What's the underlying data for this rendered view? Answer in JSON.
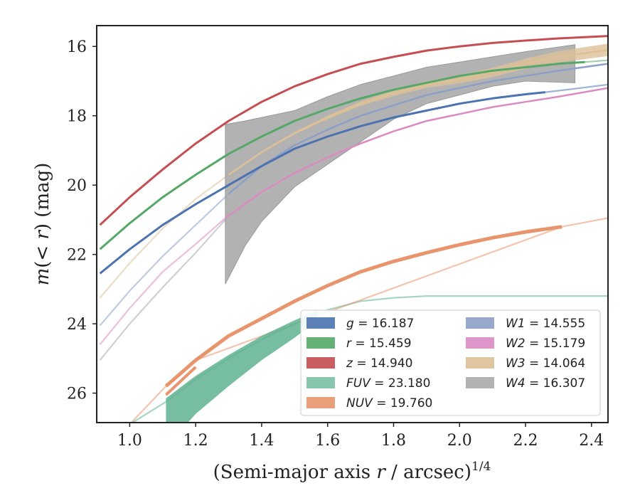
{
  "chart_data": {
    "type": "line",
    "title": "",
    "xlabel": "(Semi-major axis r / arcsec)^{1/4}",
    "xlabel_parts": {
      "main": "(Semi-major axis ",
      "var": "r",
      "rest": " / arcsec)",
      "sup": "1/4"
    },
    "ylabel": "m(< r) (mag)",
    "ylabel_parts": {
      "m": "m",
      "open": "(",
      "lt": "< ",
      "r": "r",
      "close": ")",
      "unit": " (mag)"
    },
    "xlim": [
      0.9,
      2.45
    ],
    "ylim": [
      26.85,
      15.4
    ],
    "y_inverted": true,
    "xticks": [
      1.0,
      1.2,
      1.4,
      1.6,
      1.8,
      2.0,
      2.2,
      2.4
    ],
    "xtick_labels": [
      "1.0",
      "1.2",
      "1.4",
      "1.6",
      "1.8",
      "2.0",
      "2.2",
      "2.4"
    ],
    "yticks": [
      16,
      18,
      20,
      22,
      24,
      26
    ],
    "ytick_labels": [
      "16",
      "18",
      "20",
      "22",
      "24",
      "26"
    ],
    "grid": false,
    "legend_position": "lower-right",
    "series": [
      {
        "name": "g",
        "label_var": "g",
        "label_value": "= 16.187",
        "color": "#4c72b0",
        "opacity": 1,
        "x": [
          0.91,
          1.0,
          1.1,
          1.2,
          1.3,
          1.4,
          1.5,
          1.6,
          1.7,
          1.8,
          1.9,
          2.0,
          2.1,
          2.2,
          2.26
        ],
        "y": [
          22.55,
          21.85,
          21.15,
          20.55,
          20.0,
          19.45,
          18.95,
          18.6,
          18.3,
          18.05,
          17.85,
          17.65,
          17.5,
          17.38,
          17.32
        ],
        "x_faint": [
          2.26,
          2.35,
          2.45
        ],
        "y_faint": [
          17.32,
          17.22,
          17.1
        ],
        "width": 3,
        "band": 0
      },
      {
        "name": "r",
        "label_var": "r",
        "label_value": "= 15.459",
        "color": "#55a868",
        "opacity": 1,
        "x": [
          0.91,
          1.0,
          1.1,
          1.2,
          1.3,
          1.4,
          1.5,
          1.6,
          1.7,
          1.8,
          1.9,
          2.0,
          2.1,
          2.2,
          2.3,
          2.38
        ],
        "y": [
          21.85,
          21.1,
          20.35,
          19.7,
          19.1,
          18.6,
          18.15,
          17.8,
          17.5,
          17.25,
          17.05,
          16.85,
          16.7,
          16.6,
          16.5,
          16.45
        ],
        "x_faint": [
          2.38,
          2.45
        ],
        "y_faint": [
          16.45,
          16.4
        ],
        "width": 3,
        "band": 0
      },
      {
        "name": "z",
        "label_var": "z",
        "label_value": "= 14.940",
        "color": "#c44e52",
        "opacity": 1,
        "x": [
          0.91,
          1.0,
          1.1,
          1.2,
          1.3,
          1.4,
          1.5,
          1.6,
          1.7,
          1.8,
          1.9,
          2.0,
          2.1,
          2.2,
          2.3,
          2.45
        ],
        "y": [
          21.15,
          20.35,
          19.55,
          18.8,
          18.15,
          17.6,
          17.15,
          16.8,
          16.5,
          16.3,
          16.12,
          16.0,
          15.9,
          15.83,
          15.77,
          15.7
        ],
        "x_faint": [],
        "y_faint": [],
        "width": 3,
        "band": 0
      },
      {
        "name": "FUV",
        "label_var": "FUV",
        "label_value": "= 23.180",
        "color": "#5fb292",
        "opacity": 0.85,
        "x": [
          1.11,
          1.2,
          1.3,
          1.4,
          1.5,
          1.57
        ],
        "y": [
          26.25,
          25.6,
          25.0,
          24.45,
          24.0,
          23.7
        ],
        "x_faint": [
          0.96,
          1.0,
          1.11,
          1.2,
          1.3,
          1.4,
          1.5,
          1.6,
          1.7,
          1.8,
          1.9,
          2.0,
          2.2,
          2.45
        ],
        "y_faint": [
          27.0,
          26.9,
          26.25,
          25.6,
          25.0,
          24.45,
          24.0,
          23.6,
          23.35,
          23.25,
          23.2,
          23.2,
          23.2,
          23.2
        ],
        "width": 2,
        "band": 1
      },
      {
        "name": "NUV",
        "label_var": "NUV",
        "label_value": "= 19.760",
        "color": "#e8956d",
        "opacity": 1,
        "x": [
          1.11,
          1.2,
          1.3,
          1.4,
          1.5,
          1.6,
          1.7,
          1.8,
          1.9,
          2.0,
          2.1,
          2.2,
          2.31
        ],
        "y": [
          25.8,
          25.05,
          24.35,
          23.85,
          23.35,
          22.9,
          22.5,
          22.2,
          21.95,
          21.72,
          21.52,
          21.35,
          21.2
        ],
        "x_faint": [
          0.99,
          1.11,
          1.2,
          2.31,
          2.45
        ],
        "y_faint": [
          27.0,
          25.8,
          25.05,
          21.2,
          20.95
        ],
        "width": 5,
        "band": 0
      },
      {
        "name": "W1",
        "label_var": "W1",
        "label_value": "= 14.555",
        "color": "#8c9fc7",
        "opacity": 1,
        "x": [
          1.3,
          1.4,
          1.5,
          1.6,
          1.7,
          1.8,
          1.9,
          2.0,
          2.1,
          2.2,
          2.3,
          2.45
        ],
        "y": [
          20.25,
          19.45,
          18.85,
          18.4,
          18.0,
          17.7,
          17.4,
          17.2,
          17.0,
          16.85,
          16.7,
          16.5
        ],
        "x_faint": [
          0.91,
          1.0,
          1.1,
          1.2,
          1.3
        ],
        "y_faint": [
          24.05,
          23.05,
          22.05,
          21.15,
          20.25
        ],
        "width": 2.5,
        "band": 0
      },
      {
        "name": "W2",
        "label_var": "W2",
        "label_value": "= 15.179",
        "color": "#da8bc3",
        "opacity": 1,
        "x": [
          1.29,
          1.4,
          1.5,
          1.6,
          1.7,
          1.8,
          1.9,
          2.0,
          2.1,
          2.2,
          2.3,
          2.45
        ],
        "y": [
          20.95,
          20.2,
          19.65,
          19.2,
          18.8,
          18.45,
          18.15,
          17.95,
          17.75,
          17.6,
          17.45,
          17.2
        ],
        "x_faint": [
          0.91,
          1.0,
          1.1,
          1.2,
          1.29
        ],
        "y_faint": [
          24.6,
          23.55,
          22.5,
          21.7,
          20.95
        ],
        "width": 2.5,
        "band": 0
      },
      {
        "name": "W3",
        "label_var": "W3",
        "label_value": "= 14.064",
        "color": "#dcc097",
        "opacity": 1,
        "x": [
          1.3,
          1.4,
          1.5,
          1.6,
          1.7,
          1.8,
          1.9,
          2.0,
          2.1,
          2.2,
          2.3,
          2.45
        ],
        "y": [
          19.7,
          19.05,
          18.5,
          18.05,
          17.65,
          17.35,
          17.1,
          16.95,
          16.75,
          16.5,
          16.3,
          16.1
        ],
        "x_faint": [
          0.91,
          1.0,
          1.1,
          1.2,
          1.3
        ],
        "y_faint": [
          23.25,
          22.25,
          21.25,
          20.4,
          19.7
        ],
        "width": 2.5,
        "band": 0.18
      },
      {
        "name": "W4",
        "label_var": "W4",
        "label_value": "= 16.307",
        "color": "#aaaaaa",
        "opacity": 0.9,
        "x": [
          1.29,
          1.35,
          1.4,
          1.5,
          1.6,
          1.7,
          1.8,
          1.9,
          2.0,
          2.1,
          2.2,
          2.35
        ],
        "y_top": [
          18.25,
          18.15,
          18.05,
          17.85,
          17.45,
          17.1,
          16.85,
          16.6,
          16.45,
          16.3,
          16.15,
          15.95
        ],
        "y_bottom": [
          22.85,
          21.75,
          21.05,
          20.05,
          19.4,
          18.75,
          18.1,
          17.65,
          17.4,
          17.15,
          17.0,
          17.05
        ],
        "x_faint": [
          0.91,
          1.0,
          1.1,
          1.2,
          1.29
        ],
        "y_faint": [
          25.05,
          24.0,
          22.95,
          21.95,
          21.0
        ],
        "width": 2,
        "band": 0
      }
    ]
  },
  "legend": {
    "columns": [
      [
        "g",
        "r",
        "z",
        "FUV",
        "NUV"
      ],
      [
        "W1",
        "W2",
        "W3",
        "W4"
      ]
    ]
  }
}
